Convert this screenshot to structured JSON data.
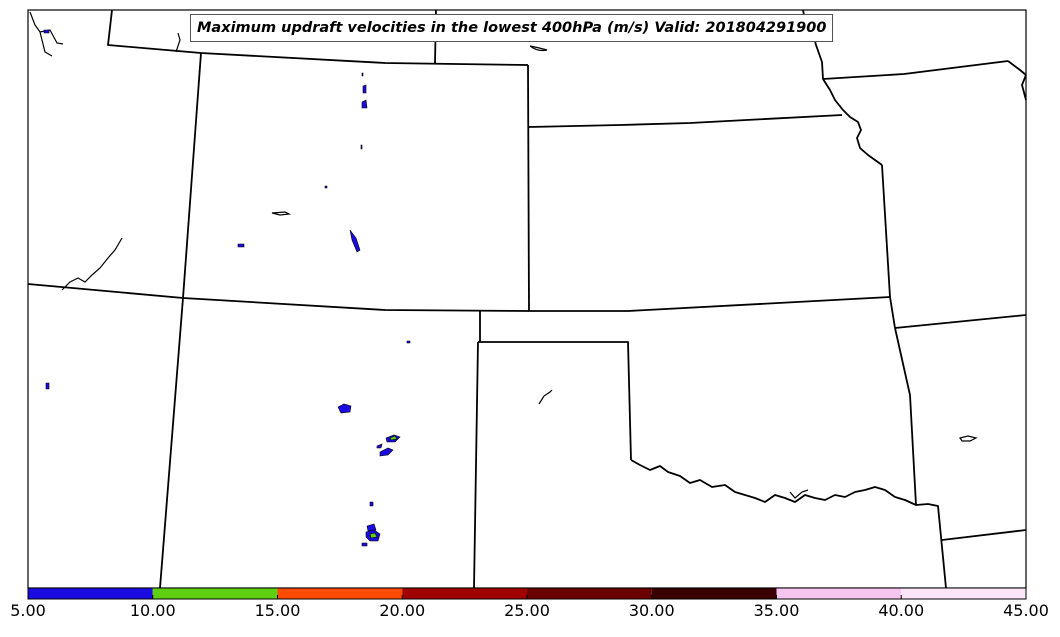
{
  "title": "Maximum updraft velocities in the lowest 400hPa (m/s) Valid: 201804291900",
  "colorbar": {
    "bins": [
      {
        "low": 5,
        "high": 10,
        "color": "#1a0be0"
      },
      {
        "low": 10,
        "high": 15,
        "color": "#5fd011"
      },
      {
        "low": 15,
        "high": 20,
        "color": "#ff4a00"
      },
      {
        "low": 20,
        "high": 25,
        "color": "#a00000"
      },
      {
        "low": 25,
        "high": 30,
        "color": "#6b0000"
      },
      {
        "low": 30,
        "high": 35,
        "color": "#3a0000"
      },
      {
        "low": 35,
        "high": 40,
        "color": "#f6c6f0"
      },
      {
        "low": 40,
        "high": 45,
        "color": "#fbe4f8"
      }
    ],
    "tick_labels": [
      "5.00",
      "10.00",
      "15.00",
      "20.00",
      "25.00",
      "30.00",
      "35.00",
      "40.00",
      "45.00"
    ]
  }
}
